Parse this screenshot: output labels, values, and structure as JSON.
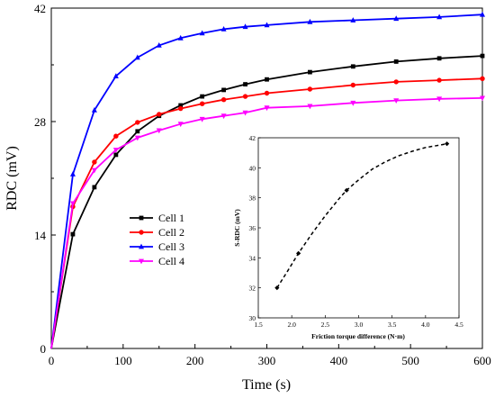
{
  "chart_data": [
    {
      "type": "line",
      "title": "",
      "xlabel": "Time (s)",
      "ylabel": "RDC (mV)",
      "xlim": [
        0,
        600
      ],
      "ylim": [
        0,
        42
      ],
      "x_ticks": [
        0,
        100,
        200,
        300,
        400,
        500,
        600
      ],
      "y_ticks": [
        0,
        14,
        28,
        42
      ],
      "x_tick_labels": [
        "0",
        "100",
        "200",
        "300",
        "400",
        "500",
        "600"
      ],
      "y_tick_labels": [
        "0",
        "14",
        "28",
        "42"
      ],
      "grid": false,
      "legend_position": "center-left",
      "series": [
        {
          "name": "Cell 1",
          "color": "#000000",
          "marker": "square",
          "x": [
            0,
            30,
            60,
            90,
            120,
            150,
            180,
            210,
            240,
            270,
            300,
            360,
            420,
            480,
            540,
            600
          ],
          "y": [
            0,
            14.1,
            19.9,
            23.9,
            26.8,
            28.7,
            30.0,
            31.1,
            31.9,
            32.6,
            33.2,
            34.1,
            34.8,
            35.4,
            35.8,
            36.1
          ]
        },
        {
          "name": "Cell 2",
          "color": "#ff0000",
          "marker": "circle",
          "x": [
            0,
            30,
            60,
            90,
            120,
            150,
            180,
            210,
            240,
            270,
            300,
            360,
            420,
            480,
            540,
            600
          ],
          "y": [
            0,
            17.5,
            23.0,
            26.2,
            27.9,
            28.9,
            29.6,
            30.2,
            30.7,
            31.1,
            31.5,
            32.0,
            32.5,
            32.9,
            33.1,
            33.3
          ]
        },
        {
          "name": "Cell 3",
          "color": "#0000ff",
          "marker": "triangle",
          "x": [
            0,
            30,
            60,
            90,
            120,
            150,
            180,
            210,
            240,
            270,
            300,
            360,
            420,
            480,
            540,
            600
          ],
          "y": [
            0,
            21.5,
            29.4,
            33.6,
            35.9,
            37.4,
            38.3,
            38.9,
            39.4,
            39.7,
            39.9,
            40.3,
            40.5,
            40.7,
            40.9,
            41.2
          ]
        },
        {
          "name": "Cell 4",
          "color": "#ff00ff",
          "marker": "triangle-down",
          "x": [
            0,
            30,
            60,
            90,
            120,
            150,
            180,
            210,
            240,
            270,
            300,
            360,
            420,
            480,
            540,
            600
          ],
          "y": [
            0,
            17.9,
            22.0,
            24.5,
            26.0,
            26.9,
            27.7,
            28.3,
            28.7,
            29.1,
            29.7,
            29.9,
            30.3,
            30.6,
            30.8,
            30.9
          ]
        }
      ]
    },
    {
      "type": "scatter",
      "title": "",
      "xlabel": "Friction torque difference (N·m)",
      "ylabel": "S-RDC (mV)",
      "xlim": [
        1.5,
        4.5
      ],
      "ylim": [
        30,
        42
      ],
      "x_ticks": [
        1.5,
        2.0,
        2.5,
        3.0,
        3.5,
        4.0,
        4.5
      ],
      "y_ticks": [
        30,
        32,
        34,
        36,
        38,
        40,
        42
      ],
      "x_tick_labels": [
        "1.5",
        "2.0",
        "2.5",
        "3.0",
        "3.5",
        "4.0",
        "4.5"
      ],
      "y_tick_labels": [
        "30",
        "32",
        "34",
        "36",
        "38",
        "40",
        "42"
      ],
      "grid": false,
      "points": {
        "x": [
          1.78,
          2.1,
          2.82,
          4.32
        ],
        "y": [
          32.0,
          34.3,
          38.5,
          41.6
        ]
      },
      "trend": {
        "style": "dashed",
        "x": [
          1.78,
          1.95,
          2.1,
          2.3,
          2.5,
          2.7,
          2.82,
          3.0,
          3.2,
          3.4,
          3.6,
          3.8,
          4.0,
          4.2,
          4.32
        ],
        "y": [
          32.0,
          33.2,
          34.3,
          35.6,
          36.8,
          37.9,
          38.5,
          39.2,
          39.9,
          40.4,
          40.8,
          41.1,
          41.35,
          41.5,
          41.6
        ]
      }
    }
  ]
}
